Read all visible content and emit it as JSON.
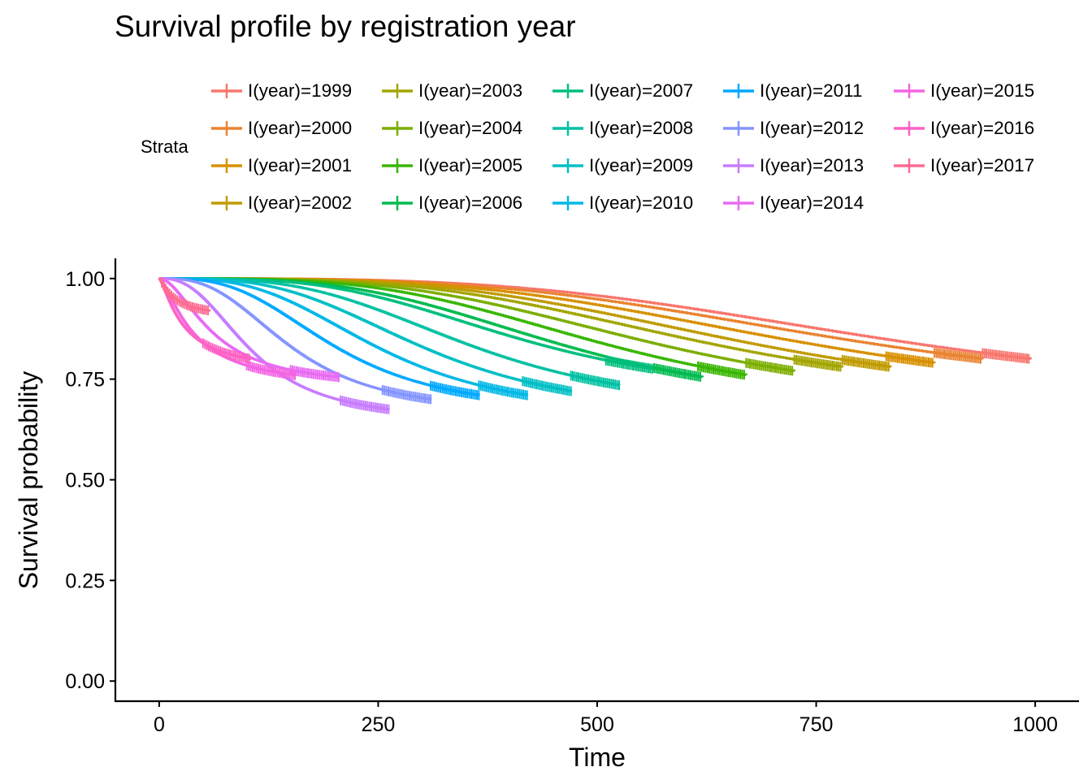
{
  "chart_data": {
    "type": "line",
    "title": "Survival profile by registration year",
    "xlabel": "Time",
    "ylabel": "Survival probability",
    "xlim": [
      -50,
      1050
    ],
    "ylim": [
      -0.05,
      1.05
    ],
    "x_ticks": [
      "0",
      "250",
      "500",
      "750",
      "1000"
    ],
    "y_ticks": [
      "0.00",
      "0.25",
      "0.50",
      "0.75",
      "1.00"
    ],
    "grid": false,
    "legend": {
      "title": "Strata",
      "placement": "top"
    },
    "series": [
      {
        "name": "I(year)=1999",
        "color": "#F8766D",
        "max_time": 995,
        "end_surv": 0.8,
        "midpoint": 845,
        "shape": 3.5
      },
      {
        "name": "I(year)=2000",
        "color": "#EA8331",
        "max_time": 940,
        "end_surv": 0.8,
        "midpoint": 790,
        "shape": 3.5
      },
      {
        "name": "I(year)=2001",
        "color": "#D89000",
        "max_time": 885,
        "end_surv": 0.79,
        "midpoint": 735,
        "shape": 3.5
      },
      {
        "name": "I(year)=2002",
        "color": "#C09B00",
        "max_time": 835,
        "end_surv": 0.78,
        "midpoint": 680,
        "shape": 3.5
      },
      {
        "name": "I(year)=2003",
        "color": "#A3A500",
        "max_time": 780,
        "end_surv": 0.78,
        "midpoint": 625,
        "shape": 3.5
      },
      {
        "name": "I(year)=2004",
        "color": "#7CAE00",
        "max_time": 725,
        "end_surv": 0.77,
        "midpoint": 572,
        "shape": 3.5
      },
      {
        "name": "I(year)=2005",
        "color": "#39B600",
        "max_time": 670,
        "end_surv": 0.76,
        "midpoint": 518,
        "shape": 3.5
      },
      {
        "name": "I(year)=2006",
        "color": "#00BB4E",
        "max_time": 620,
        "end_surv": 0.755,
        "midpoint": 465,
        "shape": 3.4
      },
      {
        "name": "I(year)=2007",
        "color": "#00BF7D",
        "max_time": 565,
        "end_surv": 0.775,
        "midpoint": 412,
        "shape": 3.4
      },
      {
        "name": "I(year)=2008",
        "color": "#00C1A3",
        "max_time": 525,
        "end_surv": 0.735,
        "midpoint": 360,
        "shape": 3.3
      },
      {
        "name": "I(year)=2009",
        "color": "#00BFC4",
        "max_time": 470,
        "end_surv": 0.72,
        "midpoint": 305,
        "shape": 3.2
      },
      {
        "name": "I(year)=2010",
        "color": "#00B8E5",
        "max_time": 420,
        "end_surv": 0.71,
        "midpoint": 252,
        "shape": 3.1
      },
      {
        "name": "I(year)=2011",
        "color": "#00A9FF",
        "max_time": 365,
        "end_surv": 0.71,
        "midpoint": 200,
        "shape": 3.0
      },
      {
        "name": "I(year)=2012",
        "color": "#8494FF",
        "max_time": 310,
        "end_surv": 0.7,
        "midpoint": 150,
        "shape": 2.8
      },
      {
        "name": "I(year)=2013",
        "color": "#C77CFF",
        "max_time": 262,
        "end_surv": 0.675,
        "midpoint": 105,
        "shape": 2.5
      },
      {
        "name": "I(year)=2014",
        "color": "#E76BF3",
        "max_time": 205,
        "end_surv": 0.755,
        "midpoint": 62,
        "shape": 1.8
      },
      {
        "name": "I(year)=2015",
        "color": "#F564E3",
        "max_time": 155,
        "end_surv": 0.76,
        "midpoint": 40,
        "shape": 1.4
      },
      {
        "name": "I(year)=2016",
        "color": "#FF61C3",
        "max_time": 105,
        "end_surv": 0.8,
        "midpoint": 28,
        "shape": 1.3
      },
      {
        "name": "I(year)=2017",
        "color": "#FF6C91",
        "max_time": 58,
        "end_surv": 0.92,
        "midpoint": 18,
        "shape": 1.2
      }
    ]
  }
}
